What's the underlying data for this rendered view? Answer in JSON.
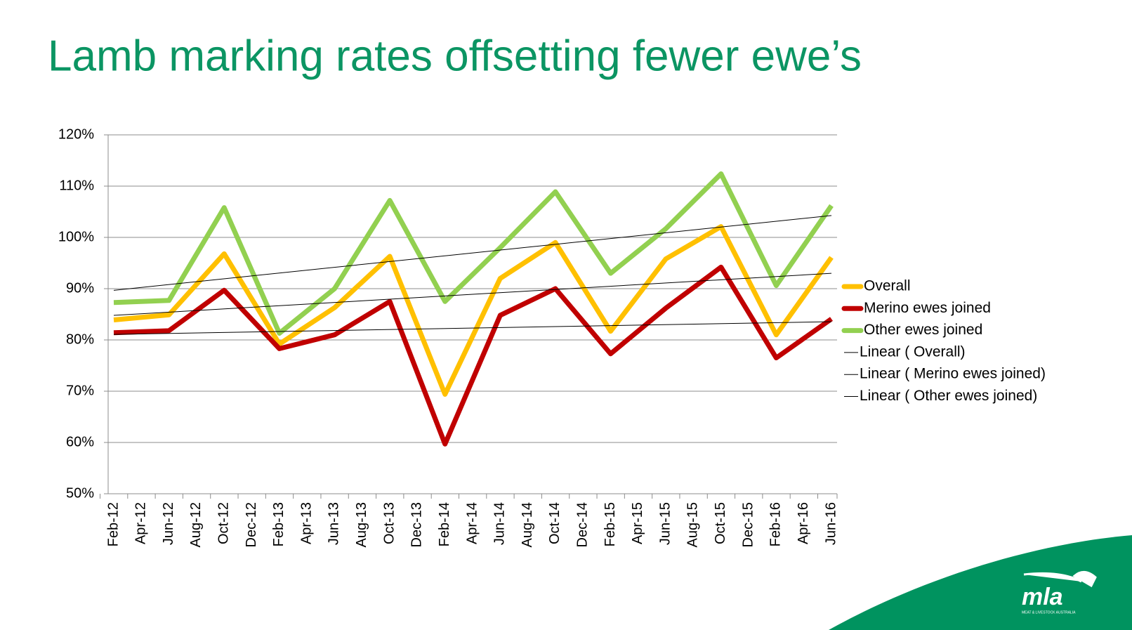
{
  "chart_data": {
    "type": "line",
    "title": "Lamb marking rates offsetting fewer ewe’s",
    "xticks": [
      "Feb-12",
      "Apr-12",
      "Jun-12",
      "Aug-12",
      "Oct-12",
      "Dec-12",
      "Feb-13",
      "Apr-13",
      "Jun-13",
      "Aug-13",
      "Oct-13",
      "Dec-13",
      "Feb-14",
      "Apr-14",
      "Jun-14",
      "Aug-14",
      "Oct-14",
      "Dec-14",
      "Feb-15",
      "Apr-15",
      "Jun-15",
      "Aug-15",
      "Oct-15",
      "Dec-15",
      "Feb-16",
      "Apr-16",
      "Jun-16"
    ],
    "x": [
      "Feb-12",
      "Jun-12",
      "Oct-12",
      "Feb-13",
      "Jun-13",
      "Oct-13",
      "Feb-14",
      "Jun-14",
      "Oct-14",
      "Feb-15",
      "Jun-15",
      "Oct-15",
      "Feb-16",
      "Jun-16"
    ],
    "series": [
      {
        "name": "Overall",
        "color": "#ffc000",
        "values": [
          83.9,
          84.9,
          96.8,
          79.2,
          86.3,
          96.3,
          69.4,
          92.0,
          99.0,
          81.7,
          95.8,
          102.1,
          81.0,
          96.1
        ]
      },
      {
        "name": "Merino ewes joined",
        "color": "#c00000",
        "values": [
          81.4,
          81.8,
          89.7,
          78.3,
          81.0,
          87.5,
          59.7,
          84.8,
          90.0,
          77.3,
          86.2,
          94.2,
          76.5,
          84.1
        ]
      },
      {
        "name": "Other ewes joined",
        "color": "#92d050",
        "values": [
          87.3,
          87.7,
          105.8,
          81.3,
          90.0,
          107.2,
          87.5,
          98.0,
          108.9,
          93.0,
          101.7,
          112.4,
          90.6,
          106.2
        ]
      }
    ],
    "trendlines": [
      {
        "name": "Linear ( Overall)",
        "series": 0
      },
      {
        "name": "Linear ( Merino ewes joined)",
        "series": 1
      },
      {
        "name": "Linear ( Other ewes joined)",
        "series": 2
      }
    ],
    "ylim": [
      50,
      120
    ],
    "yticks": [
      {
        "value": 50,
        "label": "50%"
      },
      {
        "value": 60,
        "label": "60%"
      },
      {
        "value": 70,
        "label": "70%"
      },
      {
        "value": 80,
        "label": "80%"
      },
      {
        "value": 90,
        "label": "90%"
      },
      {
        "value": 100,
        "label": "100%"
      },
      {
        "value": 110,
        "label": "110%"
      },
      {
        "value": 120,
        "label": "120%"
      }
    ],
    "grid": true,
    "legend": "right"
  },
  "logo": {
    "text": "mla",
    "tagline": "MEAT & LIVESTOCK AUSTRALIA"
  }
}
